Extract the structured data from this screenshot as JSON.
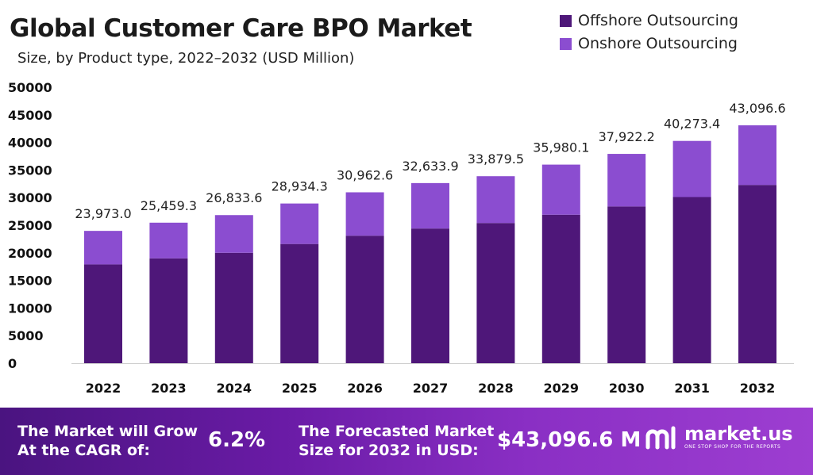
{
  "chart_data": {
    "type": "bar",
    "stacked": true,
    "title": "Global Customer Care BPO Market",
    "subtitle": "Size, by Product type, 2022–2032 (USD Million)",
    "categories": [
      "2022",
      "2023",
      "2024",
      "2025",
      "2026",
      "2027",
      "2028",
      "2029",
      "2030",
      "2031",
      "2032"
    ],
    "series": [
      {
        "name": "Offshore Outsourcing",
        "color": "#4e1779",
        "values": [
          17900,
          19000,
          20000,
          21600,
          23100,
          24400,
          25400,
          26900,
          28400,
          30100,
          32300
        ]
      },
      {
        "name": "Onshore Outsourcing",
        "color": "#8b4dd0",
        "values": [
          6073.0,
          6459.3,
          6833.6,
          7334.3,
          7862.6,
          8233.9,
          8479.5,
          9080.1,
          9522.2,
          10173.4,
          10796.6
        ]
      }
    ],
    "totals_labels": [
      "23,973.0",
      "25,459.3",
      "26,833.6",
      "28,934.3",
      "30,962.6",
      "32,633.9",
      "33,879.5",
      "35,980.1",
      "37,922.2",
      "40,273.4",
      "43,096.6"
    ],
    "totals": [
      23973.0,
      25459.3,
      26833.6,
      28934.3,
      30962.6,
      32633.9,
      33879.5,
      35980.1,
      37922.2,
      40273.4,
      43096.6
    ],
    "yticks": [
      "0",
      "5000",
      "10000",
      "15000",
      "20000",
      "25000",
      "30000",
      "35000",
      "40000",
      "45000",
      "50000"
    ],
    "ylim": [
      0,
      50000
    ],
    "grid": false,
    "legend_position": "top-right"
  },
  "footer": {
    "cagr_label": "The Market will Grow At the CAGR of:",
    "cagr_value": "6.2%",
    "forecast_label": "The Forecasted Market Size for 2032 in USD:",
    "forecast_value": "$43,096.6 M",
    "logo_name": "market.us",
    "logo_tagline": "ONE STOP SHOP FOR THE REPORTS"
  }
}
